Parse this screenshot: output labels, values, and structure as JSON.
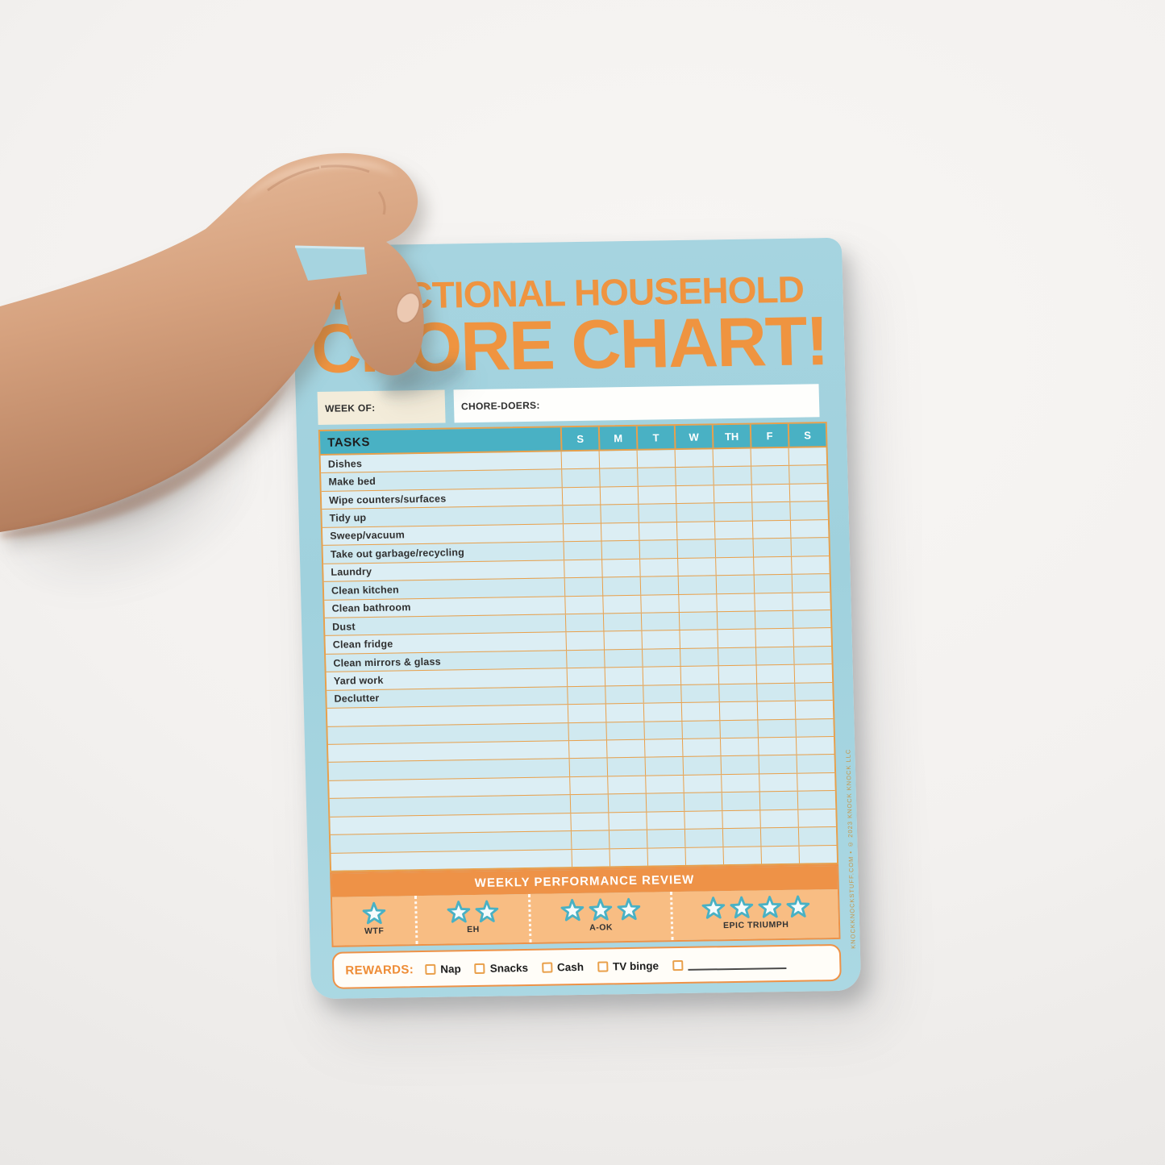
{
  "pad": {
    "title_line1": "FUNCTIONAL HOUSEHOLD",
    "title_line2": "CHORE CHART!",
    "week_of_label": "WEEK OF:",
    "chore_doers_label": "CHORE-DOERS:",
    "table": {
      "tasks_header": "TASKS",
      "day_headers": [
        "S",
        "M",
        "T",
        "W",
        "TH",
        "F",
        "S"
      ],
      "tasks": [
        "Dishes",
        "Make bed",
        "Wipe counters/surfaces",
        "Tidy up",
        "Sweep/vacuum",
        "Take out garbage/recycling",
        "Laundry",
        "Clean kitchen",
        "Clean bathroom",
        "Dust",
        "Clean fridge",
        "Clean mirrors & glass",
        "Yard work",
        "Declutter"
      ],
      "empty_row_count": 9
    },
    "review": {
      "title": "WEEKLY PERFORMANCE REVIEW",
      "ratings": [
        {
          "stars": 1,
          "label": "WTF"
        },
        {
          "stars": 2,
          "label": "EH"
        },
        {
          "stars": 3,
          "label": "A-OK"
        },
        {
          "stars": 4,
          "label": "EPIC TRIUMPH"
        }
      ]
    },
    "rewards": {
      "label": "REWARDS:",
      "options": [
        "Nap",
        "Snacks",
        "Cash",
        "TV binge",
        ""
      ]
    },
    "copyright": "KNOCKKNOCKSTUFF.COM • © 2023 KNOCK KNOCK LLC",
    "colors": {
      "pad_blue": "#a6d4e0",
      "row_light": "#dceef4",
      "row_dark": "#d0e9f0",
      "accent_orange": "#ef9440",
      "grid_orange": "#e9a04b",
      "header_teal": "#49b1c4",
      "band_orange": "#ee9247",
      "star_band_orange": "#f8bd83",
      "cream": "#f3ecda",
      "white": "#fefefc",
      "text_dark": "#2e2e2e"
    }
  }
}
